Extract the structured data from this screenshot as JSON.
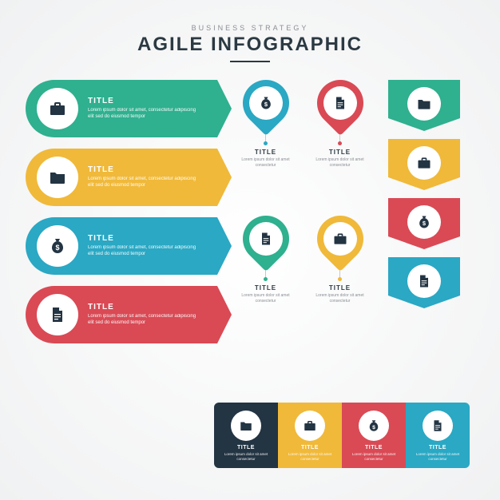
{
  "header": {
    "subtitle": "BUSINESS STRATEGY",
    "title": "AGILE INFOGRAPHIC"
  },
  "colors": {
    "green": "#2fb08f",
    "yellow": "#f0b93a",
    "teal": "#2aa8c4",
    "red": "#d94a55",
    "navy": "#233443",
    "white": "#ffffff",
    "text": "#2b3942",
    "muted": "#8a8f94"
  },
  "body_text": "Lorem ipsum dolor sit amet, consectetur adipiscing elit sed do eiusmod tempor",
  "body_text_short": "Lorem ipsum dolor sit amet consectetur",
  "left_cards": [
    {
      "title": "TITLE",
      "icon": "briefcase",
      "color": "#2fb08f"
    },
    {
      "title": "TITLE",
      "icon": "folder",
      "color": "#f0b93a"
    },
    {
      "title": "TITLE",
      "icon": "money-bag",
      "color": "#2aa8c4"
    },
    {
      "title": "TITLE",
      "icon": "document",
      "color": "#d94a55"
    }
  ],
  "pins": [
    {
      "title": "TITLE",
      "icon": "money-bag",
      "color": "#2aa8c4"
    },
    {
      "title": "TITLE",
      "icon": "document",
      "color": "#d94a55"
    },
    {
      "title": "TITLE",
      "icon": "document",
      "color": "#2fb08f"
    },
    {
      "title": "TITLE",
      "icon": "briefcase",
      "color": "#f0b93a"
    }
  ],
  "chevrons": [
    {
      "icon": "folder",
      "color": "#2fb08f"
    },
    {
      "icon": "briefcase",
      "color": "#f0b93a"
    },
    {
      "icon": "money-bag",
      "color": "#d94a55"
    },
    {
      "icon": "document",
      "color": "#2aa8c4"
    }
  ],
  "bottom_segments": [
    {
      "title": "TITLE",
      "icon": "folder",
      "color": "#233443"
    },
    {
      "title": "TITLE",
      "icon": "briefcase",
      "color": "#f0b93a"
    },
    {
      "title": "TITLE",
      "icon": "money-bag",
      "color": "#d94a55"
    },
    {
      "title": "TITLE",
      "icon": "document",
      "color": "#2aa8c4"
    }
  ],
  "icon_fill": "#233443",
  "typography": {
    "title_size": 24,
    "subtitle_size": 9,
    "card_title_size": 10,
    "body_size": 6
  }
}
